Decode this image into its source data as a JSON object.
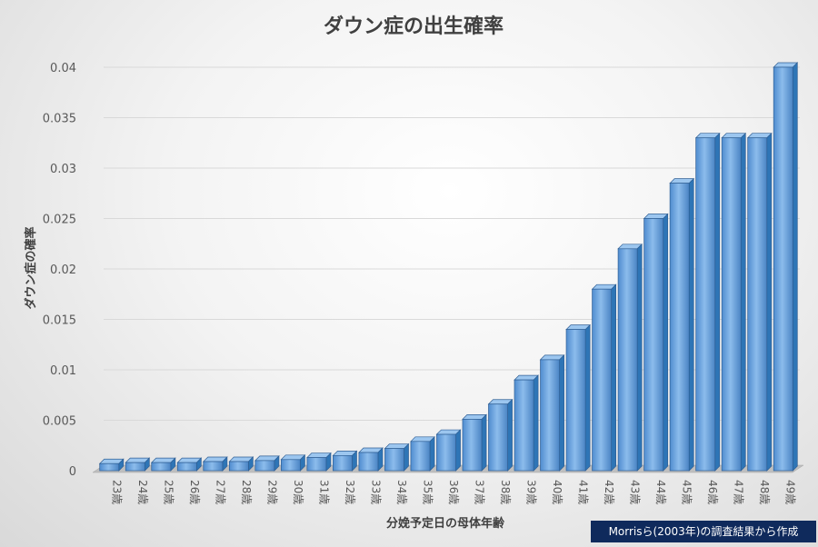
{
  "chart_data": {
    "type": "bar",
    "title": "ダウン症の出生確率",
    "xlabel": "分娩予定日の母体年齢",
    "ylabel": "ダウン症の確率",
    "ylim": [
      0,
      0.04
    ],
    "yticks": [
      "0",
      "0.005",
      "0.01",
      "0.015",
      "0.02",
      "0.025",
      "0.03",
      "0.035",
      "0.04"
    ],
    "grid": true,
    "categories": [
      "23歳",
      "24歳",
      "25歳",
      "26歳",
      "27歳",
      "28歳",
      "29歳",
      "30歳",
      "31歳",
      "32歳",
      "33歳",
      "34歳",
      "35歳",
      "36歳",
      "37歳",
      "38歳",
      "39歳",
      "40歳",
      "41歳",
      "42歳",
      "43歳",
      "44歳",
      "45歳",
      "46歳",
      "47歳",
      "48歳",
      "49歳"
    ],
    "values": [
      0.0007,
      0.0008,
      0.0008,
      0.0008,
      0.0009,
      0.0009,
      0.001,
      0.0011,
      0.0013,
      0.0015,
      0.0018,
      0.0022,
      0.0029,
      0.0036,
      0.0051,
      0.0066,
      0.009,
      0.011,
      0.014,
      0.018,
      0.022,
      0.025,
      0.0285,
      0.033,
      0.033,
      0.033,
      0.04
    ],
    "bar_color": "#5b9bd5",
    "bar_dark": "#2e75b6"
  },
  "source_note": "Morrisら(2003年)の調査結果から作成"
}
